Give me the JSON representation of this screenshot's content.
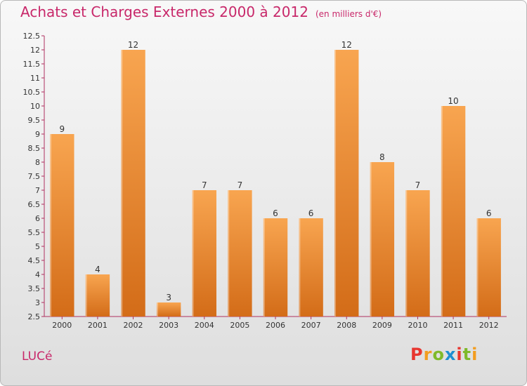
{
  "title": "Achats et Charges Externes 2000 à 2012",
  "unit": "(en milliers d'€)",
  "commune": "LUCé",
  "logo": {
    "text": "Proxiti",
    "colors": [
      "#e8362f",
      "#f29d1f",
      "#7fba2a",
      "#1d8fd1",
      "#e8362f",
      "#7fba2a",
      "#f29d1f"
    ]
  },
  "colors": {
    "accent": "#c8286a",
    "bar_top": "#f8a550",
    "bar_bottom": "#d36c18",
    "axis": "#b03060"
  },
  "chart_data": {
    "type": "bar",
    "categories": [
      "2000",
      "2001",
      "2002",
      "2003",
      "2004",
      "2005",
      "2006",
      "2007",
      "2008",
      "2009",
      "2010",
      "2011",
      "2012"
    ],
    "values": [
      9,
      4,
      12,
      3,
      7,
      7,
      6,
      6,
      12,
      8,
      7,
      10,
      6
    ],
    "title": "Achats et Charges Externes 2000 à 2012",
    "xlabel": "",
    "ylabel": "",
    "ylim": [
      2.5,
      12.5
    ],
    "yticks": [
      2.5,
      3,
      3.5,
      4,
      4.5,
      5,
      5.5,
      6,
      6.5,
      7,
      7.5,
      8,
      8.5,
      9,
      9.5,
      10,
      10.5,
      11,
      11.5,
      12,
      12.5
    ],
    "grid": false,
    "data_labels": true
  }
}
